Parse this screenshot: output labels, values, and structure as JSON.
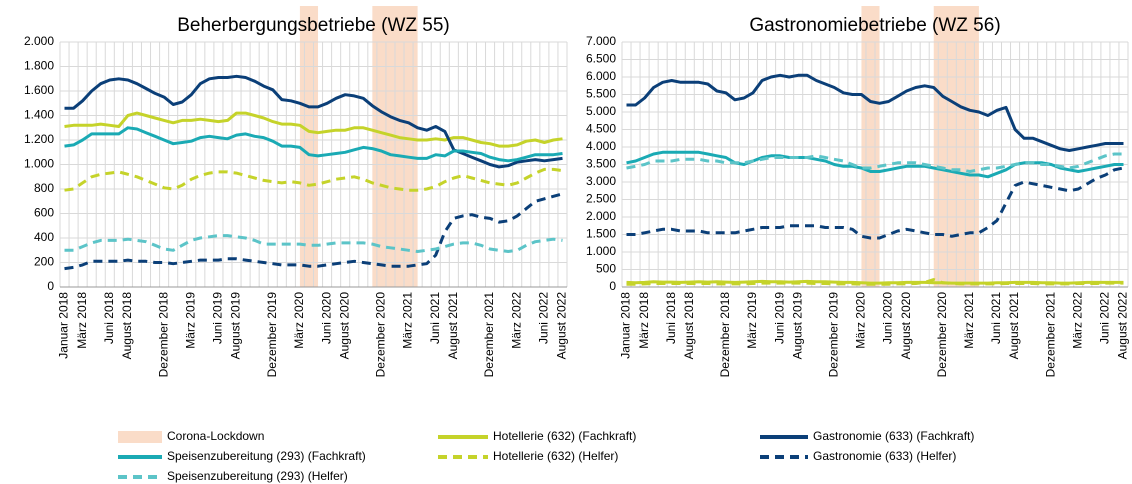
{
  "lockdown": {
    "label": "Corona-Lockdown",
    "color": "#fadcc8",
    "periods": [
      [
        26,
        28
      ],
      [
        34,
        39
      ]
    ]
  },
  "chart_data": [
    {
      "type": "line",
      "title": "Beherbergungsbetriebe (WZ 55)",
      "categories": [
        "Januar 2018",
        null,
        "März 2018",
        null,
        null,
        "Juni 2018",
        null,
        "August 2018",
        null,
        null,
        null,
        "Dezember 2018",
        null,
        null,
        "März 2019",
        null,
        null,
        "Juni 2019",
        null,
        "August 2019",
        null,
        null,
        null,
        "Dezember 2019",
        null,
        null,
        "März 2020",
        null,
        null,
        "Juni 2020",
        null,
        "August 2020",
        null,
        null,
        null,
        "Dezember 2020",
        null,
        null,
        "März 2021",
        null,
        null,
        "Juni 2021",
        null,
        "August 2021",
        null,
        null,
        null,
        "Dezember 2021",
        null,
        null,
        "März 2022",
        null,
        null,
        "Juni 2022",
        null,
        "August 2022"
      ],
      "ylim": [
        0,
        2000
      ],
      "yticks": [
        0,
        200,
        400,
        600,
        800,
        {
          "value": 1000,
          "label": "1.000"
        },
        {
          "value": 1200,
          "label": "1.200"
        },
        {
          "value": 1400,
          "label": "1.400"
        },
        {
          "value": 1600,
          "label": "1.600"
        },
        {
          "value": 1800,
          "label": "1.800"
        },
        {
          "value": 2000,
          "label": "2.000"
        }
      ],
      "grid": true,
      "series": [
        {
          "name": "Hotellerie (632) (Fachkraft)",
          "color": "#c5d32a",
          "dash": false,
          "values": [
            1310,
            1320,
            1320,
            1320,
            1330,
            1320,
            1310,
            1400,
            1420,
            1400,
            1380,
            1360,
            1340,
            1360,
            1360,
            1370,
            1360,
            1350,
            1360,
            1420,
            1420,
            1400,
            1380,
            1350,
            1330,
            1330,
            1320,
            1270,
            1260,
            1270,
            1280,
            1280,
            1300,
            1300,
            1280,
            1260,
            1240,
            1220,
            1210,
            1200,
            1200,
            1210,
            1200,
            1220,
            1220,
            1200,
            1180,
            1170,
            1150,
            1150,
            1160,
            1190,
            1200,
            1180,
            1200,
            1210
          ]
        },
        {
          "name": "Gastronomie (633) (Fachkraft)",
          "color": "#0b3f78",
          "dash": false,
          "values": [
            1460,
            1460,
            1520,
            1600,
            1660,
            1690,
            1700,
            1690,
            1660,
            1620,
            1580,
            1550,
            1490,
            1510,
            1570,
            1660,
            1700,
            1710,
            1710,
            1720,
            1710,
            1680,
            1640,
            1610,
            1530,
            1520,
            1500,
            1470,
            1470,
            1500,
            1540,
            1570,
            1560,
            1540,
            1480,
            1430,
            1390,
            1360,
            1340,
            1300,
            1280,
            1310,
            1270,
            1120,
            1090,
            1060,
            1030,
            1000,
            980,
            990,
            1020,
            1030,
            1040,
            1030,
            1040,
            1050
          ]
        },
        {
          "name": "Speisenzubereitung (293) (Fachkraft)",
          "color": "#1aaab4",
          "dash": false,
          "values": [
            1150,
            1160,
            1200,
            1250,
            1250,
            1250,
            1250,
            1300,
            1290,
            1260,
            1230,
            1200,
            1170,
            1180,
            1190,
            1220,
            1230,
            1220,
            1210,
            1240,
            1250,
            1230,
            1220,
            1190,
            1150,
            1150,
            1140,
            1080,
            1070,
            1080,
            1090,
            1100,
            1120,
            1140,
            1130,
            1110,
            1080,
            1070,
            1060,
            1050,
            1050,
            1080,
            1070,
            1110,
            1110,
            1100,
            1090,
            1060,
            1040,
            1030,
            1040,
            1060,
            1080,
            1080,
            1080,
            1090
          ]
        },
        {
          "name": "Hotellerie (632) (Helfer)",
          "color": "#c5d32a",
          "dash": true,
          "values": [
            790,
            800,
            850,
            900,
            920,
            930,
            940,
            920,
            900,
            870,
            840,
            810,
            800,
            830,
            880,
            910,
            930,
            940,
            940,
            930,
            910,
            890,
            870,
            860,
            850,
            860,
            850,
            830,
            840,
            860,
            880,
            890,
            900,
            880,
            850,
            830,
            810,
            800,
            790,
            790,
            800,
            820,
            860,
            890,
            910,
            890,
            870,
            850,
            840,
            830,
            850,
            890,
            930,
            960,
            960,
            950
          ]
        },
        {
          "name": "Gastronomie (633) (Helfer)",
          "color": "#0b3f78",
          "dash": true,
          "values": [
            150,
            160,
            180,
            210,
            210,
            210,
            210,
            220,
            210,
            210,
            200,
            200,
            190,
            200,
            210,
            220,
            220,
            220,
            230,
            230,
            220,
            210,
            200,
            190,
            180,
            180,
            180,
            170,
            170,
            180,
            190,
            200,
            210,
            200,
            190,
            180,
            170,
            170,
            170,
            180,
            190,
            260,
            450,
            560,
            580,
            590,
            570,
            560,
            530,
            540,
            580,
            640,
            700,
            720,
            740,
            760
          ]
        },
        {
          "name": "Speisenzubereitung (293) (Helfer)",
          "color": "#5cc4c8",
          "dash": true,
          "values": [
            300,
            300,
            330,
            360,
            380,
            380,
            380,
            390,
            380,
            370,
            340,
            310,
            300,
            340,
            380,
            400,
            410,
            420,
            420,
            410,
            400,
            380,
            350,
            350,
            350,
            350,
            350,
            340,
            340,
            350,
            360,
            360,
            360,
            360,
            350,
            330,
            320,
            310,
            300,
            290,
            300,
            310,
            330,
            350,
            360,
            360,
            340,
            310,
            300,
            290,
            300,
            340,
            370,
            380,
            390,
            380
          ]
        }
      ]
    },
    {
      "type": "line",
      "title": "Gastronomiebetriebe (WZ 56)",
      "categories": [
        "Januar 2018",
        null,
        "März 2018",
        null,
        null,
        "Juni 2018",
        null,
        "August 2018",
        null,
        null,
        null,
        "Dezember 2018",
        null,
        null,
        "März 2019",
        null,
        null,
        "Juni 2019",
        null,
        "August 2019",
        null,
        null,
        null,
        "Dezember 2019",
        null,
        null,
        "März 2020",
        null,
        null,
        "Juni 2020",
        null,
        "August 2020",
        null,
        null,
        null,
        "Dezember 2020",
        null,
        null,
        "März 2021",
        null,
        null,
        "Juni 2021",
        null,
        "August 2021",
        null,
        null,
        null,
        "Dezember 2021",
        null,
        null,
        "März 2022",
        null,
        null,
        "Juni 2022",
        null,
        "August 2022"
      ],
      "ylim": [
        0,
        7000
      ],
      "yticks": [
        0,
        500,
        {
          "value": 1000,
          "label": "1.000"
        },
        {
          "value": 1500,
          "label": "1.500"
        },
        {
          "value": 2000,
          "label": "2.000"
        },
        {
          "value": 2500,
          "label": "2.500"
        },
        {
          "value": 3000,
          "label": "3.000"
        },
        {
          "value": 3500,
          "label": "3.500"
        },
        {
          "value": 4000,
          "label": "4.000"
        },
        {
          "value": 4500,
          "label": "4.500"
        },
        {
          "value": 5000,
          "label": "5.000"
        },
        {
          "value": 5500,
          "label": "5.500"
        },
        {
          "value": 6000,
          "label": "6.000"
        },
        {
          "value": 6500,
          "label": "6.500"
        },
        {
          "value": 7000,
          "label": "7.000"
        }
      ],
      "grid": true,
      "series": [
        {
          "name": "Hotellerie (632) (Fachkraft)",
          "color": "#c5d32a",
          "dash": false,
          "values": [
            130,
            120,
            130,
            150,
            140,
            140,
            130,
            140,
            150,
            140,
            150,
            140,
            130,
            140,
            150,
            160,
            150,
            150,
            140,
            150,
            160,
            150,
            150,
            140,
            130,
            130,
            120,
            110,
            110,
            120,
            120,
            130,
            130,
            130,
            120,
            120,
            110,
            110,
            110,
            110,
            110,
            120,
            120,
            130,
            130,
            130,
            120,
            120,
            110,
            110,
            120,
            130,
            130,
            130,
            130,
            130
          ]
        },
        {
          "name": "Gastronomie (633) (Fachkraft)",
          "color": "#0b3f78",
          "dash": false,
          "values": [
            5200,
            5200,
            5400,
            5700,
            5850,
            5900,
            5850,
            5850,
            5850,
            5800,
            5600,
            5550,
            5350,
            5400,
            5550,
            5900,
            6000,
            6050,
            6000,
            6050,
            6050,
            5900,
            5800,
            5700,
            5550,
            5500,
            5500,
            5300,
            5250,
            5300,
            5450,
            5600,
            5700,
            5750,
            5700,
            5450,
            5300,
            5150,
            5050,
            5000,
            4900,
            5050,
            5130,
            4500,
            4250,
            4250,
            4150,
            4050,
            3950,
            3900,
            3950,
            4000,
            4050,
            4100,
            4100,
            4100
          ]
        },
        {
          "name": "Speisenzubereitung (293) (Fachkraft)",
          "color": "#1aaab4",
          "dash": false,
          "values": [
            3550,
            3600,
            3700,
            3800,
            3850,
            3850,
            3850,
            3850,
            3850,
            3800,
            3750,
            3700,
            3550,
            3500,
            3600,
            3700,
            3750,
            3750,
            3700,
            3700,
            3700,
            3650,
            3600,
            3500,
            3450,
            3450,
            3400,
            3300,
            3300,
            3350,
            3400,
            3450,
            3450,
            3450,
            3400,
            3350,
            3300,
            3250,
            3200,
            3200,
            3150,
            3250,
            3350,
            3500,
            3550,
            3550,
            3550,
            3500,
            3400,
            3350,
            3300,
            3350,
            3400,
            3450,
            3500,
            3500
          ]
        },
        {
          "name": "Hotellerie (632) (Helfer)",
          "color": "#c5d32a",
          "dash": true,
          "values": [
            80,
            80,
            90,
            100,
            100,
            100,
            100,
            100,
            100,
            100,
            90,
            90,
            90,
            90,
            100,
            110,
            110,
            110,
            110,
            110,
            110,
            100,
            100,
            90,
            90,
            90,
            80,
            80,
            80,
            80,
            90,
            90,
            100,
            130,
            210,
            120,
            100,
            90,
            90,
            90,
            90,
            90,
            100,
            100,
            100,
            100,
            90,
            90,
            90,
            90,
            100,
            100,
            100,
            110,
            110,
            110
          ]
        },
        {
          "name": "Gastronomie (633) (Helfer)",
          "color": "#0b3f78",
          "dash": true,
          "values": [
            1500,
            1500,
            1550,
            1600,
            1650,
            1650,
            1600,
            1600,
            1600,
            1550,
            1550,
            1550,
            1550,
            1600,
            1650,
            1700,
            1700,
            1700,
            1750,
            1750,
            1750,
            1750,
            1700,
            1700,
            1700,
            1650,
            1450,
            1400,
            1400,
            1500,
            1600,
            1650,
            1600,
            1550,
            1500,
            1500,
            1450,
            1500,
            1550,
            1550,
            1700,
            1900,
            2400,
            2900,
            3000,
            2950,
            2900,
            2850,
            2800,
            2750,
            2800,
            2950,
            3100,
            3200,
            3350,
            3400
          ]
        },
        {
          "name": "Speisenzubereitung (293) (Helfer)",
          "color": "#5cc4c8",
          "dash": true,
          "values": [
            3400,
            3450,
            3500,
            3600,
            3600,
            3600,
            3650,
            3650,
            3650,
            3600,
            3600,
            3550,
            3550,
            3550,
            3600,
            3650,
            3700,
            3700,
            3700,
            3700,
            3700,
            3750,
            3700,
            3650,
            3600,
            3500,
            3400,
            3400,
            3450,
            3500,
            3550,
            3550,
            3550,
            3500,
            3450,
            3400,
            3350,
            3350,
            3300,
            3350,
            3400,
            3400,
            3450,
            3500,
            3550,
            3550,
            3500,
            3500,
            3450,
            3400,
            3450,
            3550,
            3650,
            3750,
            3800,
            3800
          ]
        }
      ]
    }
  ]
}
